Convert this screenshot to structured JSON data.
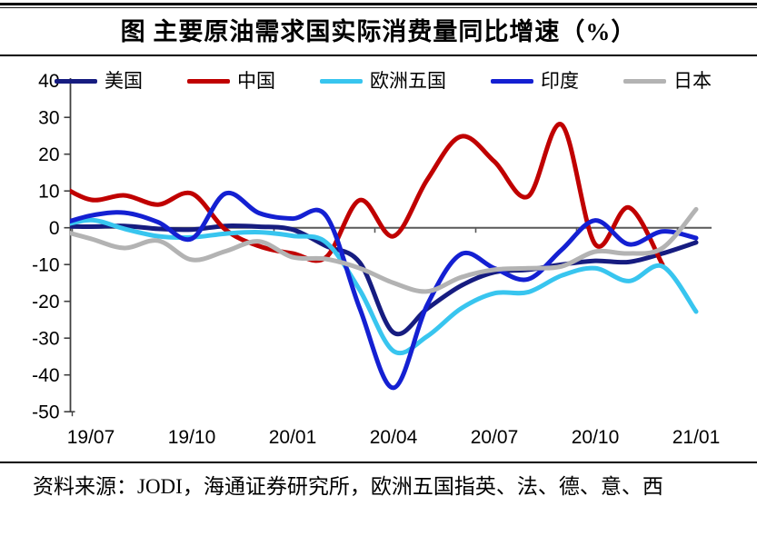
{
  "title": "图  主要原油需求国实际消费量同比增速（%）",
  "source_note": "资料来源：JODI，海通证券研究所，欧洲五国指英、法、德、意、西",
  "colors": {
    "us": "#161C80",
    "china": "#C00000",
    "europe5": "#38C5EF",
    "india": "#1420D2",
    "japan": "#B3B3B3",
    "axis": "#404040",
    "zero_line": "#595959",
    "tick": "#595959",
    "text": "#000000"
  },
  "chart_data": {
    "type": "line",
    "smooth": true,
    "grid": false,
    "legend_position": "top",
    "title": "图 主要原油需求国实际消费量同比增速（%）",
    "xlabel": "",
    "ylabel": "",
    "ylim": [
      -50,
      40
    ],
    "y_ticks": [
      40,
      30,
      20,
      10,
      0,
      -10,
      -20,
      -30,
      -40,
      -50
    ],
    "x_tick_labels": [
      "19/07",
      "19/10",
      "20/01",
      "20/04",
      "20/07",
      "20/10",
      "21/01"
    ],
    "categories": [
      "19/06",
      "19/07",
      "19/08",
      "19/09",
      "19/10",
      "19/11",
      "19/12",
      "20/01",
      "20/02",
      "20/03",
      "20/04",
      "20/05",
      "20/06",
      "20/07",
      "20/08",
      "20/09",
      "20/10",
      "20/11",
      "20/12",
      "21/01"
    ],
    "series": [
      {
        "id": "us",
        "name": "美国",
        "color_key": "us",
        "values": [
          0.5,
          0.3,
          0.5,
          -0.3,
          -0.5,
          0.5,
          0.3,
          -0.5,
          -5,
          -9.5,
          -28.5,
          -22,
          -15.8,
          -12.1,
          -11.4,
          -10,
          -9,
          -9.3,
          -7,
          -4
        ]
      },
      {
        "id": "china",
        "name": "中国",
        "color_key": "china",
        "values": [
          12,
          7.6,
          8.8,
          6.3,
          9.3,
          -0.5,
          -5,
          -7,
          -8,
          7.5,
          -2.3,
          13,
          24.8,
          18,
          8.5,
          28,
          -4.5,
          5.5,
          -10,
          null
        ]
      },
      {
        "id": "europe5",
        "name": "欧洲五国",
        "color_key": "europe5",
        "values": [
          0.2,
          2.1,
          -0.3,
          -2.3,
          -2.6,
          -1.6,
          -1.2,
          -2.2,
          -4,
          -17,
          -33.5,
          -29.5,
          -22,
          -17.8,
          -17.5,
          -13,
          -11,
          -14.5,
          -10.5,
          -22.8
        ]
      },
      {
        "id": "india",
        "name": "印度",
        "color_key": "india",
        "values": [
          0.7,
          3.3,
          4.1,
          1.5,
          -3,
          9.3,
          4,
          2.5,
          3.2,
          -22,
          -43.5,
          -21,
          -7.2,
          -11,
          -14,
          -6,
          2,
          -4.5,
          -1,
          -2.8
        ]
      },
      {
        "id": "japan",
        "name": "日本",
        "color_key": "japan",
        "values": [
          -0.5,
          -3,
          -5.5,
          -3.5,
          -8.7,
          -6.4,
          -3.7,
          -8,
          -8.5,
          -11,
          -15,
          -17.3,
          -13.5,
          -11.4,
          -11,
          -10.5,
          -6.5,
          -7,
          -5.5,
          5
        ]
      }
    ]
  }
}
